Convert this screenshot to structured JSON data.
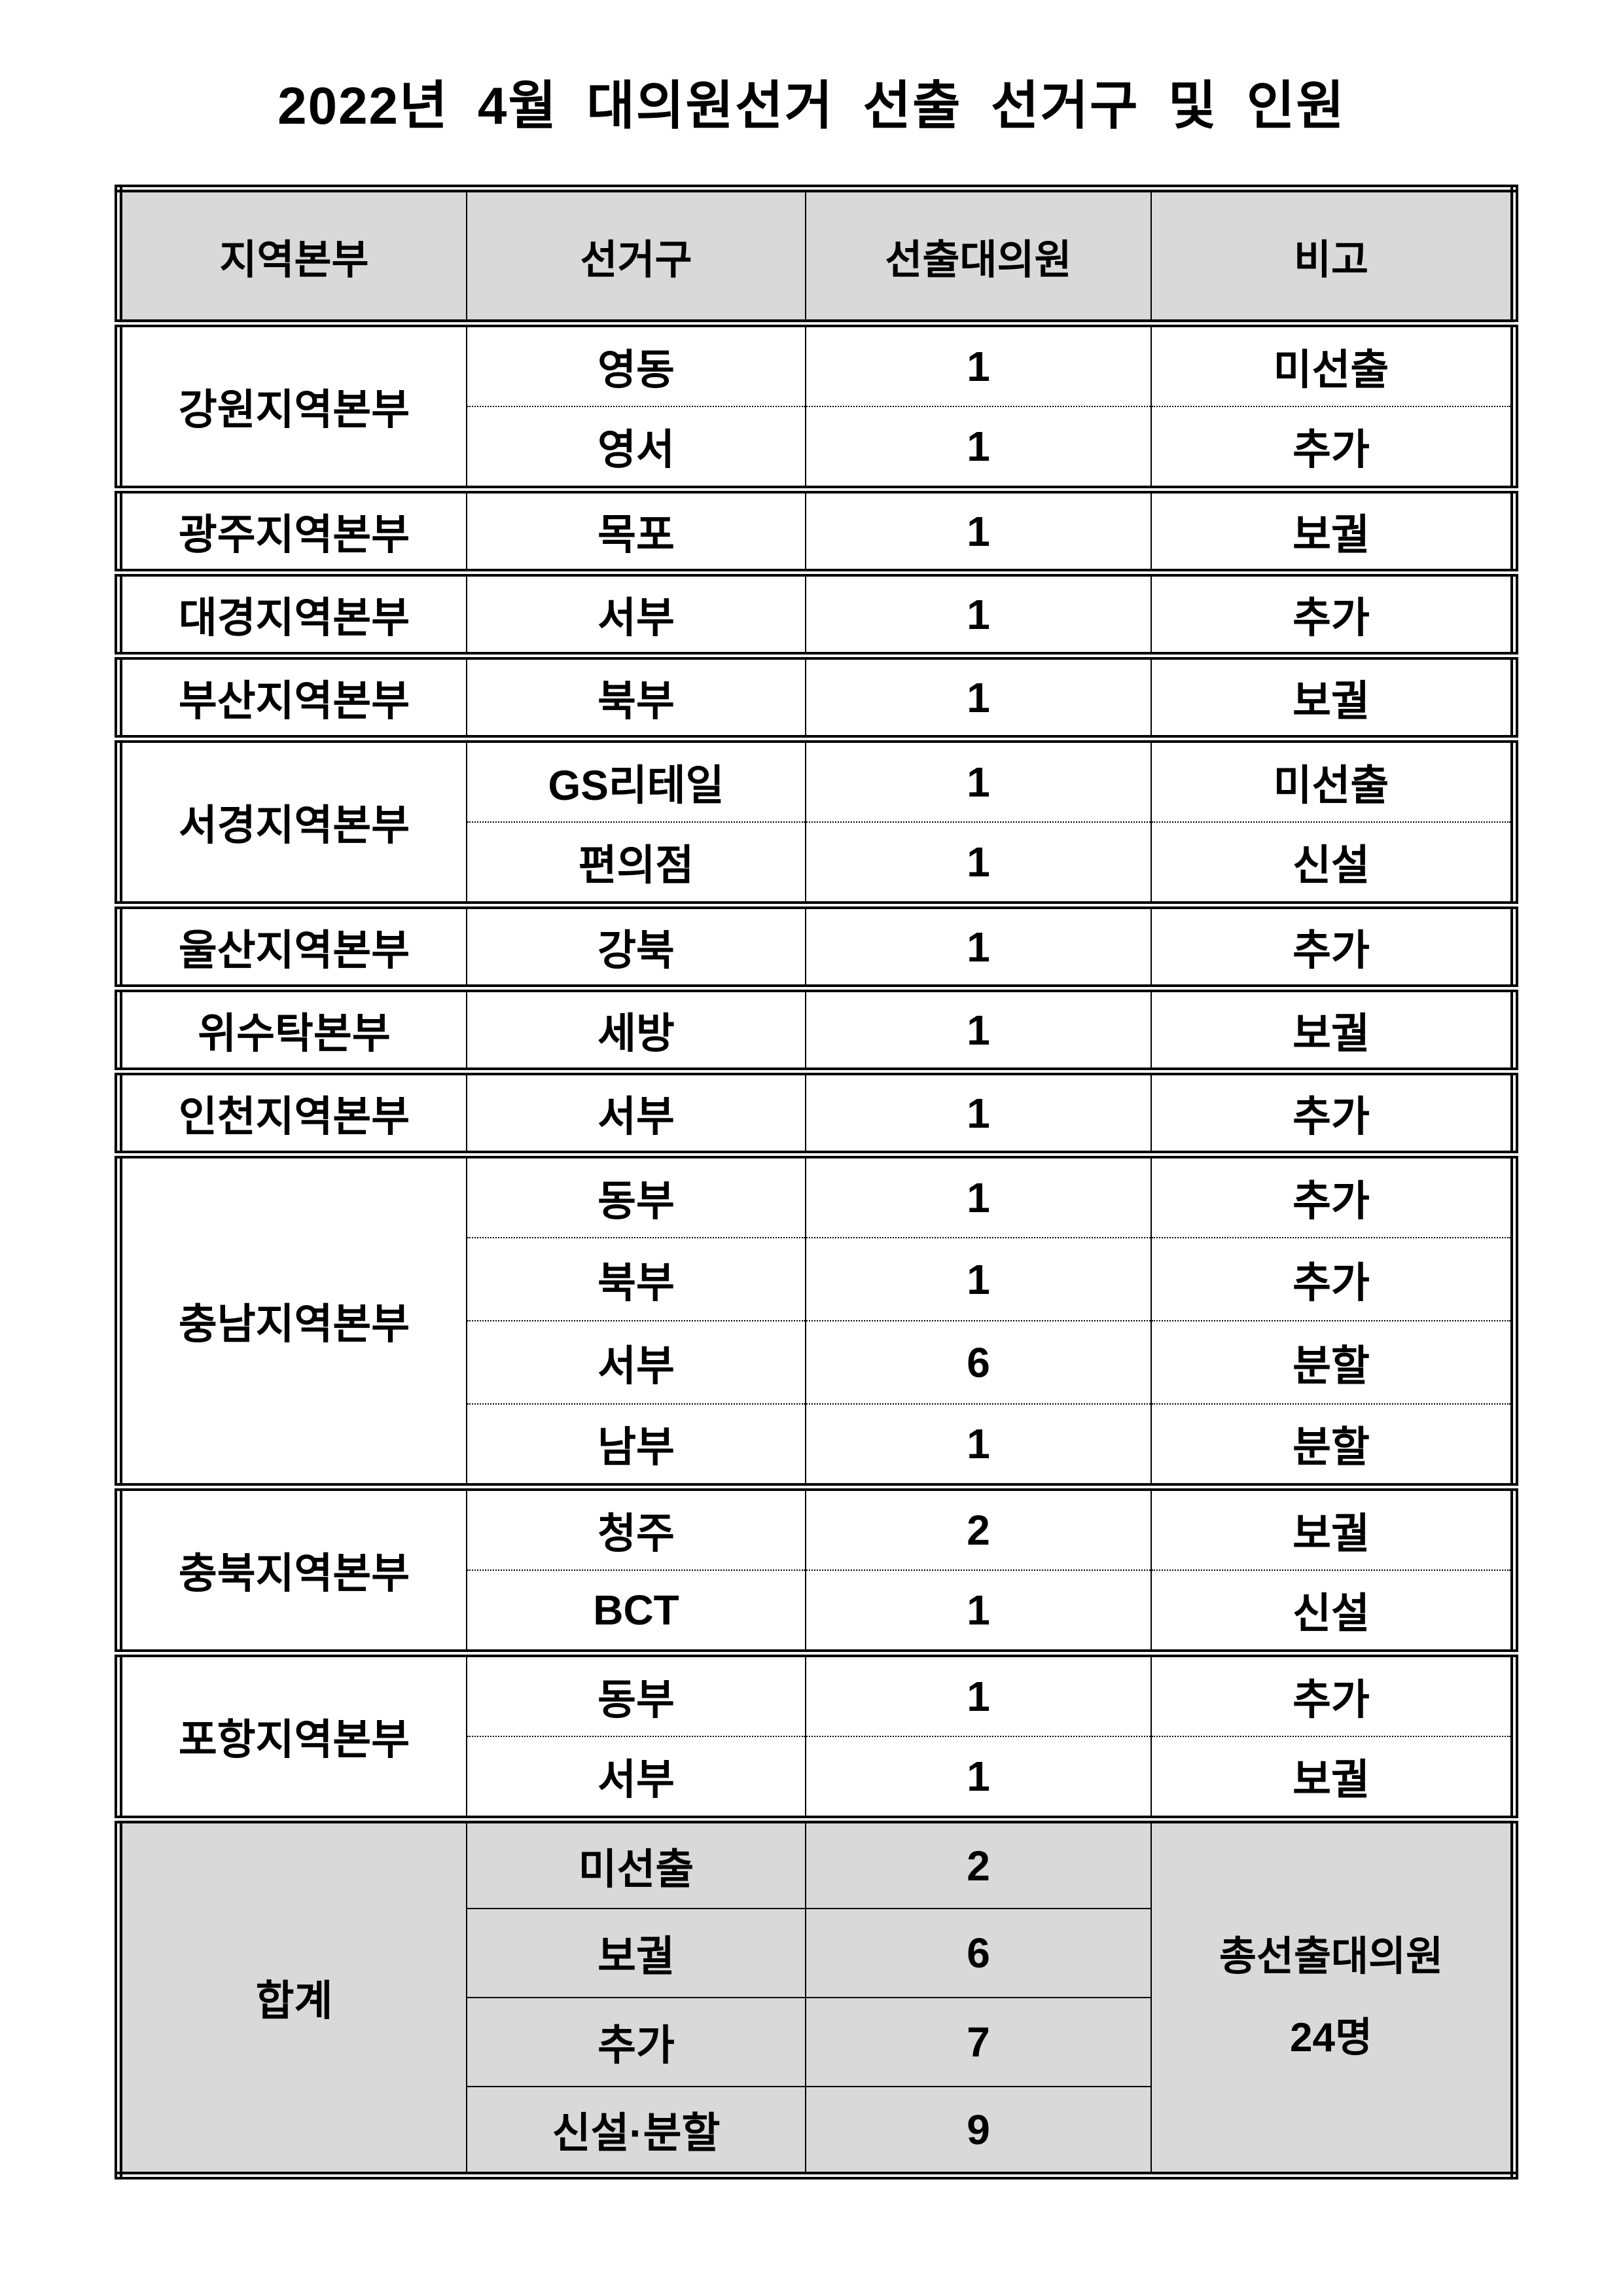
{
  "page": {
    "title": "2022년 4월 대의원선거 선출 선거구 및 인원"
  },
  "colors": {
    "header_bg": "#d9d9d9",
    "border": "#000000",
    "page_bg": "#ffffff"
  },
  "table": {
    "headers": {
      "region": "지역본부",
      "district": "선거구",
      "elected": "선출대의원",
      "note": "비고"
    },
    "groups": [
      {
        "region": "강원지역본부",
        "rows": [
          {
            "district": "영동",
            "elected": "1",
            "note": "미선출"
          },
          {
            "district": "영서",
            "elected": "1",
            "note": "추가"
          }
        ]
      },
      {
        "region": "광주지역본부",
        "rows": [
          {
            "district": "목포",
            "elected": "1",
            "note": "보궐"
          }
        ]
      },
      {
        "region": "대경지역본부",
        "rows": [
          {
            "district": "서부",
            "elected": "1",
            "note": "추가"
          }
        ]
      },
      {
        "region": "부산지역본부",
        "rows": [
          {
            "district": "북부",
            "elected": "1",
            "note": "보궐"
          }
        ]
      },
      {
        "region": "서경지역본부",
        "rows": [
          {
            "district": "GS리테일",
            "elected": "1",
            "note": "미선출"
          },
          {
            "district": "편의점",
            "elected": "1",
            "note": "신설"
          }
        ]
      },
      {
        "region": "울산지역본부",
        "rows": [
          {
            "district": "강북",
            "elected": "1",
            "note": "추가"
          }
        ]
      },
      {
        "region": "위수탁본부",
        "rows": [
          {
            "district": "세방",
            "elected": "1",
            "note": "보궐"
          }
        ]
      },
      {
        "region": "인천지역본부",
        "rows": [
          {
            "district": "서부",
            "elected": "1",
            "note": "추가"
          }
        ]
      },
      {
        "region": "충남지역본부",
        "rows": [
          {
            "district": "동부",
            "elected": "1",
            "note": "추가"
          },
          {
            "district": "북부",
            "elected": "1",
            "note": "추가"
          },
          {
            "district": "서부",
            "elected": "6",
            "note": "분할"
          },
          {
            "district": "남부",
            "elected": "1",
            "note": "분할"
          }
        ]
      },
      {
        "region": "충북지역본부",
        "rows": [
          {
            "district": "청주",
            "elected": "2",
            "note": "보궐"
          },
          {
            "district": "BCT",
            "elected": "1",
            "note": "신설"
          }
        ]
      },
      {
        "region": "포항지역본부",
        "rows": [
          {
            "district": "동부",
            "elected": "1",
            "note": "추가"
          },
          {
            "district": "서부",
            "elected": "1",
            "note": "보궐"
          }
        ]
      }
    ],
    "summary": {
      "label": "합계",
      "rows": [
        {
          "category": "미선출",
          "count": "2"
        },
        {
          "category": "보궐",
          "count": "6"
        },
        {
          "category": "추가",
          "count": "7"
        },
        {
          "category": "신설·분할",
          "count": "9"
        }
      ],
      "note_line1": "총선출대의원",
      "note_line2": "24명"
    }
  }
}
